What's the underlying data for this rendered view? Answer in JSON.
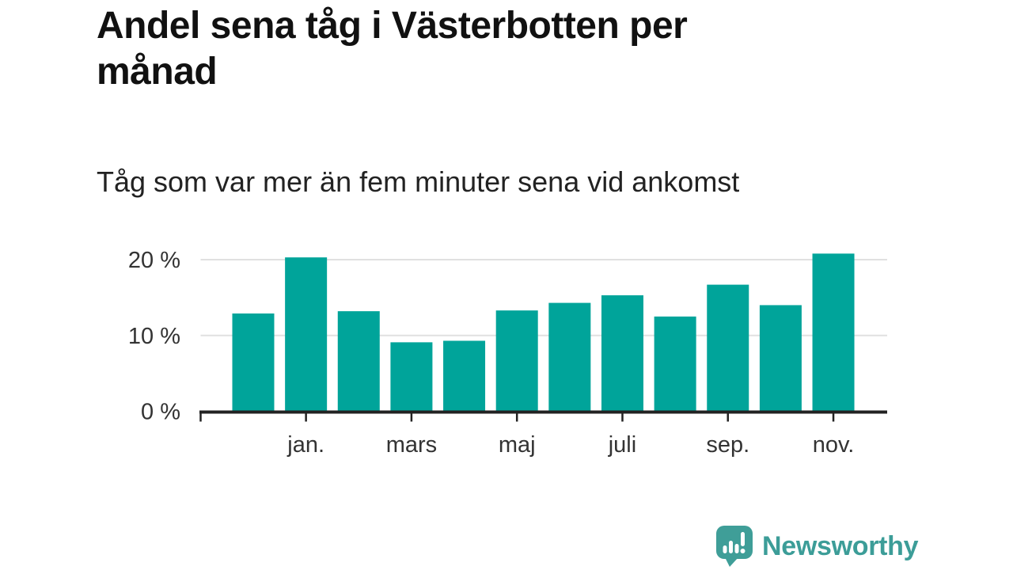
{
  "chart_data": {
    "type": "bar",
    "title": "Andel sena tåg i Västerbotten per månad",
    "subtitle": "Tåg som var mer än fem minuter sena vid ankomst",
    "categories": [
      "",
      "jan.",
      "",
      "mars",
      "",
      "maj",
      "",
      "juli",
      "",
      "sep.",
      "",
      "nov."
    ],
    "values": [
      12.9,
      20.3,
      13.2,
      9.1,
      9.3,
      13.3,
      14.3,
      15.3,
      12.5,
      16.7,
      14.0,
      20.8
    ],
    "unit": "%",
    "xlabel": "",
    "ylabel": "",
    "ylim": [
      0,
      22
    ],
    "yticks": [
      {
        "value": 0,
        "label": "0 %"
      },
      {
        "value": 10,
        "label": "10 %"
      },
      {
        "value": 20,
        "label": "20 %"
      }
    ],
    "grid": "horizontal",
    "legend": "none",
    "bar_color": "#00a49a",
    "axis_color": "#222222",
    "gridline_color": "#e0e0e0",
    "label_color": "#333333"
  },
  "footer": {
    "brand": "Newsworthy",
    "logo_icon": "newsworthy-speech-bubble-barchart-icon",
    "brand_color": "#3c9d98"
  }
}
